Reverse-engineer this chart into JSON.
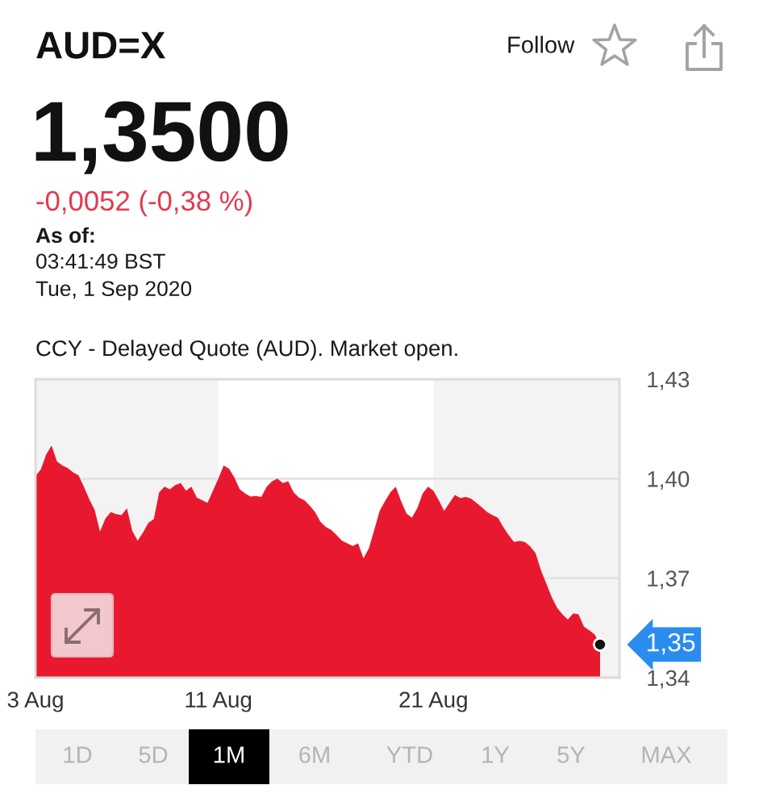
{
  "chart_data": {
    "type": "area",
    "title": "AUD=X",
    "subtitle": "1,3500",
    "annotations": [
      "Follow",
      "-0,0052 (-0,38 %)",
      "As of:",
      "03:41:49 BST",
      "Tue, 1 Sep 2020",
      "CCY - Delayed Quote (AUD). Market open.",
      "1,35",
      "1D",
      "5D",
      "1M",
      "6M",
      "YTD",
      "1Y",
      "5Y",
      "MAX"
    ],
    "categories": [
      "3 Aug",
      null,
      null,
      null,
      null,
      null,
      null,
      null,
      null,
      null,
      null,
      null,
      null,
      null,
      null,
      null,
      null,
      null,
      null,
      null,
      null,
      null,
      null,
      null,
      null,
      null,
      null,
      null,
      null,
      null,
      null,
      null,
      null,
      null,
      "11 Aug",
      null,
      null,
      null,
      null,
      null,
      null,
      null,
      null,
      null,
      null,
      null,
      null,
      null,
      null,
      null,
      null,
      null,
      null,
      null,
      null,
      null,
      null,
      null,
      null,
      null,
      null,
      null,
      null,
      null,
      null,
      null,
      null,
      null,
      null,
      null,
      null,
      null,
      null,
      null,
      "21 Aug",
      null,
      null,
      null,
      null,
      null,
      null,
      null,
      null,
      null,
      null,
      null,
      null,
      null,
      null,
      null,
      null,
      null,
      null,
      null,
      null,
      null,
      null,
      null,
      null,
      null,
      null,
      null,
      null,
      null,
      null,
      null
    ],
    "values": [
      1.4008,
      1.4028,
      1.4073,
      1.41,
      1.4052,
      1.404,
      1.4032,
      1.4019,
      1.401,
      1.3976,
      1.3938,
      1.3906,
      1.384,
      1.388,
      1.3899,
      1.3893,
      1.389,
      1.3911,
      1.3843,
      1.3813,
      1.3838,
      1.3867,
      1.3878,
      1.3959,
      1.3976,
      1.3968,
      1.3981,
      1.3987,
      1.3964,
      1.3976,
      1.3943,
      1.3935,
      1.3927,
      1.3964,
      1.4,
      1.404,
      1.403,
      1.4003,
      1.3968,
      1.3955,
      1.3946,
      1.3948,
      1.3945,
      1.3976,
      1.3992,
      1.4,
      1.3987,
      1.3992,
      1.3959,
      1.3943,
      1.3935,
      1.3919,
      1.3899,
      1.387,
      1.3854,
      1.3846,
      1.383,
      1.3813,
      1.3805,
      1.3797,
      1.3805,
      1.376,
      1.379,
      1.3846,
      1.3903,
      1.3932,
      1.3959,
      1.3976,
      1.3932,
      1.3895,
      1.3882,
      1.3911,
      1.3955,
      1.3976,
      1.3964,
      1.3935,
      1.3903,
      1.3927,
      1.3951,
      1.3942,
      1.3945,
      1.394,
      1.3927,
      1.3914,
      1.3899,
      1.389,
      1.3882,
      1.3854,
      1.383,
      1.3809,
      1.3812,
      1.3809,
      1.3796,
      1.3776,
      1.3724,
      1.3684,
      1.3643,
      1.3611,
      1.3591,
      1.3575,
      1.3594,
      1.3591,
      1.3554,
      1.3543,
      1.353,
      1.35
    ],
    "color": "#e8192f",
    "ylim": [
      1.34,
      1.43
    ],
    "yticks": [
      {
        "value": 1.34,
        "label": "1,34"
      },
      {
        "value": 1.37,
        "label": "1,37"
      },
      {
        "value": 1.4,
        "label": "1,40"
      },
      {
        "value": 1.43,
        "label": "1,43"
      }
    ],
    "grid": "y",
    "bands": [
      {
        "axis": "x",
        "from": "11 Aug",
        "to": "21 Aug",
        "color": "#ffffff"
      }
    ]
  }
}
